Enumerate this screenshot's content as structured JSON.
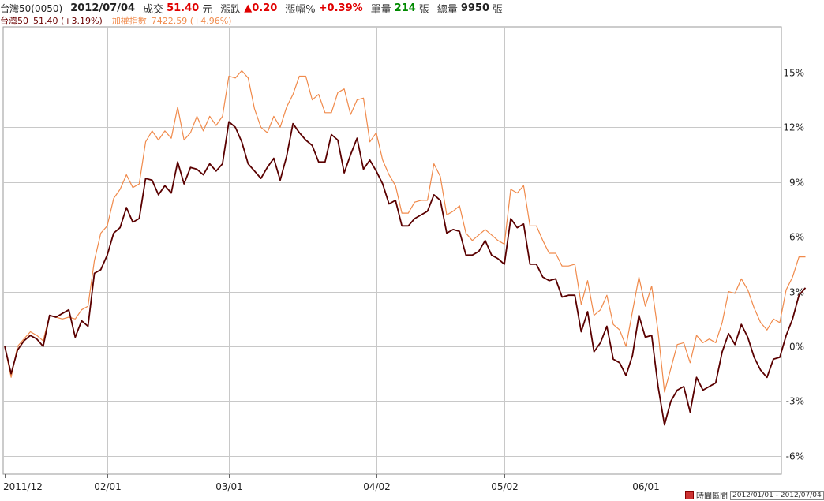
{
  "header": {
    "symbol": "台灣50(0050)",
    "date": "2012/07/04",
    "trade_label": "成交",
    "trade_value": "51.40",
    "trade_unit": "元",
    "change_label": "漲跌",
    "change_value": "▲0.20",
    "pct_label": "漲幅%",
    "pct_value": "+0.39%",
    "vol_label": "單量",
    "vol_value": "214",
    "vol_unit": "張",
    "total_label": "總量",
    "total_value": "9950",
    "total_unit": "張"
  },
  "legend": {
    "s1_name": "台灣50",
    "s1_value": "51.40 (+3.19%)",
    "s2_name": "加權指數",
    "s2_value": "7422.59 (+4.96%)"
  },
  "footer": {
    "label": "時間區間",
    "range": "2012/01/01 - 2012/07/04"
  },
  "colors": {
    "series1": "#5a0000",
    "series2": "#f08a4b",
    "grid": "#c8c8c8"
  },
  "chart_data": {
    "type": "line",
    "ylim": [
      -7,
      17.5
    ],
    "y_ticks": [
      15,
      12,
      9,
      6,
      3,
      0,
      -3,
      -6
    ],
    "y_tick_labels": [
      "15%",
      "12%",
      "9%",
      "6%",
      "3%",
      "0%",
      "-3%",
      "-6%"
    ],
    "x_ticks": [
      "2011/12",
      "02/01",
      "03/01",
      "04/02",
      "05/02",
      "06/01"
    ],
    "x_tick_index": [
      0,
      16,
      35,
      58,
      78,
      100
    ],
    "x_count": 122,
    "series": [
      {
        "name": "台灣50",
        "values": [
          0,
          -1.5,
          -0.2,
          0.3,
          0.6,
          0.4,
          0.0,
          1.7,
          1.6,
          1.8,
          2.0,
          0.5,
          1.4,
          1.1,
          4.0,
          4.2,
          5.0,
          6.2,
          6.5,
          7.6,
          6.8,
          7.0,
          9.2,
          9.1,
          8.3,
          8.8,
          8.4,
          10.1,
          8.9,
          9.8,
          9.7,
          9.4,
          10.0,
          9.6,
          10.0,
          12.3,
          12.0,
          11.2,
          10.0,
          9.6,
          9.2,
          9.8,
          10.3,
          9.1,
          10.4,
          12.2,
          11.7,
          11.3,
          11.0,
          10.1,
          10.1,
          11.6,
          11.3,
          9.5,
          10.5,
          11.4,
          9.7,
          10.2,
          9.6,
          8.9,
          7.8,
          8.0,
          6.6,
          6.6,
          7.0,
          7.2,
          7.4,
          8.3,
          8.0,
          6.2,
          6.4,
          6.3,
          5.0,
          5.0,
          5.2,
          5.8,
          5.0,
          4.8,
          4.5,
          7.0,
          6.5,
          6.7,
          4.5,
          4.5,
          3.8,
          3.6,
          3.7,
          2.7,
          2.8,
          2.8,
          0.8,
          1.9,
          -0.3,
          0.2,
          1.1,
          -0.7,
          -0.9,
          -1.6,
          -0.5,
          1.7,
          0.5,
          0.6,
          -2.2,
          -4.3,
          -3.0,
          -2.4,
          -2.2,
          -3.6,
          -1.7,
          -2.4,
          -2.2,
          -2.0,
          -0.3,
          0.7,
          0.1,
          1.2,
          0.5,
          -0.6,
          -1.3,
          -1.7,
          -0.7,
          -0.6,
          0.6,
          1.5,
          2.8,
          3.2
        ]
      },
      {
        "name": "加權指數",
        "values": [
          0,
          -1.7,
          0.0,
          0.4,
          0.8,
          0.6,
          0.3,
          1.7,
          1.6,
          1.5,
          1.6,
          1.5,
          2.0,
          2.2,
          4.7,
          6.2,
          6.6,
          8.1,
          8.6,
          9.4,
          8.7,
          8.9,
          11.2,
          11.8,
          11.3,
          11.8,
          11.4,
          13.1,
          11.3,
          11.7,
          12.6,
          11.8,
          12.6,
          12.1,
          12.6,
          14.8,
          14.7,
          15.1,
          14.7,
          13.0,
          12.0,
          11.7,
          12.6,
          12.0,
          13.1,
          13.8,
          14.8,
          14.8,
          13.5,
          13.8,
          12.8,
          12.8,
          13.9,
          14.1,
          12.7,
          13.5,
          13.6,
          11.2,
          11.7,
          10.2,
          9.4,
          8.8,
          7.3,
          7.3,
          7.9,
          8.0,
          8.0,
          10.0,
          9.3,
          7.2,
          7.4,
          7.7,
          6.2,
          5.8,
          6.1,
          6.4,
          6.1,
          5.8,
          5.6,
          8.6,
          8.4,
          8.8,
          6.6,
          6.6,
          5.8,
          5.1,
          5.1,
          4.4,
          4.4,
          4.5,
          2.3,
          3.6,
          1.7,
          2.0,
          2.8,
          1.2,
          0.9,
          0.0,
          1.9,
          3.8,
          2.2,
          3.3,
          0.8,
          -2.5,
          -1.2,
          0.1,
          0.2,
          -0.9,
          0.6,
          0.2,
          0.4,
          0.2,
          1.3,
          3.0,
          2.9,
          3.7,
          3.1,
          2.1,
          1.3,
          0.9,
          1.5,
          1.3,
          3.1,
          3.8,
          4.9,
          4.9
        ]
      }
    ]
  }
}
